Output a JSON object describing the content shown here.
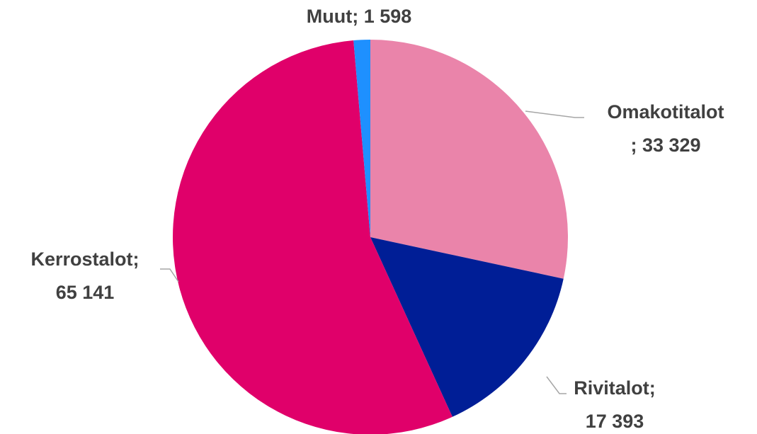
{
  "chart_data": {
    "type": "pie",
    "values": [
      33329,
      17393,
      65141,
      1598
    ],
    "value_labels": [
      "Omakotitalot; 33 329",
      "Rivitalot; 17 393",
      "Kerrostalot; 65 141",
      "Muut; 1 598"
    ],
    "colors": [
      "#ea84aa",
      "#001e96",
      "#e0006a",
      "#1e90ff"
    ]
  }
}
